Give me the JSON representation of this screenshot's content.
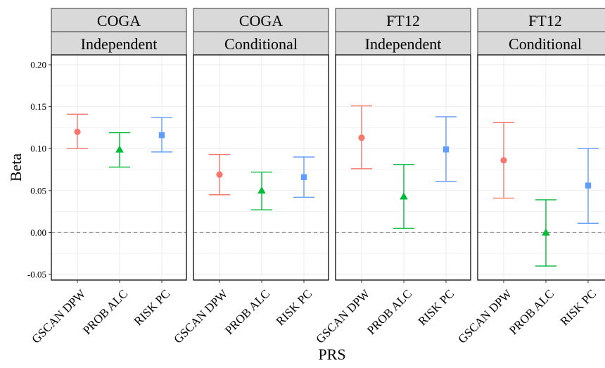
{
  "chart_data": {
    "type": "errorbar",
    "xlabel": "PRS",
    "ylabel": "Beta",
    "ylim": [
      -0.05,
      0.2
    ],
    "yticks": [
      "-0.05",
      "0.00",
      "0.05",
      "0.10",
      "0.15",
      "0.20"
    ],
    "ytick_values": [
      -0.05,
      0.0,
      0.05,
      0.1,
      0.15,
      0.2
    ],
    "reference_line": {
      "y": 0.0,
      "style": "dashed",
      "color": "#8a8a8a"
    },
    "categories": [
      "GSCAN DPW",
      "PROB ALC",
      "RISK PC"
    ],
    "series_styles": [
      {
        "category": "GSCAN DPW",
        "color": "#F8766D",
        "shape": "circle"
      },
      {
        "category": "PROB ALC",
        "color": "#00BA38",
        "shape": "triangle"
      },
      {
        "category": "RISK PC",
        "color": "#619CFF",
        "shape": "square"
      }
    ],
    "grid": true,
    "legend": "none",
    "panels": [
      {
        "strip_top": "COGA",
        "strip_bottom": "Independent",
        "points": [
          {
            "category": "GSCAN DPW",
            "value": 0.12,
            "lower": 0.1,
            "upper": 0.141
          },
          {
            "category": "PROB ALC",
            "value": 0.099,
            "lower": 0.078,
            "upper": 0.119
          },
          {
            "category": "RISK PC",
            "value": 0.116,
            "lower": 0.096,
            "upper": 0.137
          }
        ]
      },
      {
        "strip_top": "COGA",
        "strip_bottom": "Conditional",
        "points": [
          {
            "category": "GSCAN DPW",
            "value": 0.069,
            "lower": 0.045,
            "upper": 0.093
          },
          {
            "category": "PROB ALC",
            "value": 0.05,
            "lower": 0.027,
            "upper": 0.072
          },
          {
            "category": "RISK PC",
            "value": 0.066,
            "lower": 0.042,
            "upper": 0.09
          }
        ]
      },
      {
        "strip_top": "FT12",
        "strip_bottom": "Independent",
        "points": [
          {
            "category": "GSCAN DPW",
            "value": 0.113,
            "lower": 0.076,
            "upper": 0.151
          },
          {
            "category": "PROB ALC",
            "value": 0.043,
            "lower": 0.005,
            "upper": 0.081
          },
          {
            "category": "RISK PC",
            "value": 0.099,
            "lower": 0.061,
            "upper": 0.138
          }
        ]
      },
      {
        "strip_top": "FT12",
        "strip_bottom": "Conditional",
        "points": [
          {
            "category": "GSCAN DPW",
            "value": 0.086,
            "lower": 0.041,
            "upper": 0.131
          },
          {
            "category": "PROB ALC",
            "value": 0.0,
            "lower": -0.04,
            "upper": 0.039
          },
          {
            "category": "RISK PC",
            "value": 0.056,
            "lower": 0.011,
            "upper": 0.1
          }
        ]
      }
    ]
  }
}
